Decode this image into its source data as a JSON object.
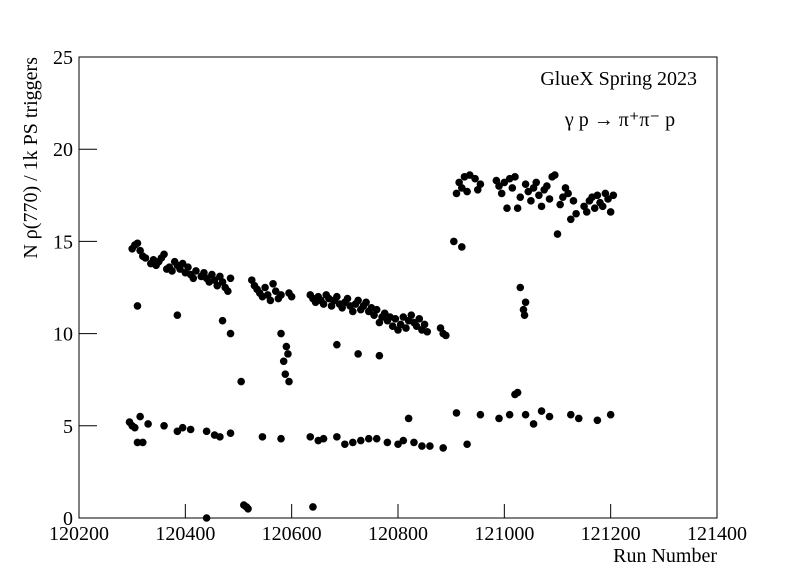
{
  "chart_data": {
    "type": "scatter",
    "y_label": "N ρ(770) / 1k PS triggers",
    "x_label": "Run Number",
    "annotations": [
      "GlueX Spring 2023",
      "γ p → π⁺π⁻ p"
    ],
    "color": "#000000",
    "xlim": [
      120200,
      121400
    ],
    "xticks": [
      120200,
      120400,
      120600,
      120800,
      121000,
      121200,
      121400
    ],
    "ylim": [
      0,
      25
    ],
    "yticks": [
      0,
      5,
      10,
      15,
      20,
      25
    ],
    "x": [
      120300,
      120305,
      120310,
      120315,
      120320,
      120325,
      120335,
      120340,
      120345,
      120350,
      120355,
      120360,
      120365,
      120370,
      120375,
      120380,
      120385,
      120390,
      120395,
      120400,
      120405,
      120410,
      120415,
      120420,
      120430,
      120435,
      120440,
      120445,
      120450,
      120455,
      120460,
      120465,
      120470,
      120475,
      120480,
      120485,
      120525,
      120530,
      120535,
      120540,
      120545,
      120550,
      120555,
      120560,
      120565,
      120570,
      120575,
      120580,
      120595,
      120600,
      120635,
      120640,
      120645,
      120650,
      120655,
      120660,
      120665,
      120670,
      120675,
      120680,
      120685,
      120690,
      120695,
      120700,
      120705,
      120710,
      120715,
      120720,
      120725,
      120730,
      120735,
      120740,
      120745,
      120750,
      120755,
      120760,
      120765,
      120770,
      120775,
      120780,
      120785,
      120790,
      120795,
      120800,
      120805,
      120810,
      120815,
      120820,
      120825,
      120830,
      120835,
      120840,
      120845,
      120850,
      120855,
      120880,
      120885,
      120890,
      120910,
      120915,
      120920,
      120925,
      120930,
      120935,
      120945,
      120950,
      120955,
      120985,
      120990,
      120995,
      121000,
      121005,
      121010,
      121015,
      121020,
      121025,
      121030,
      121040,
      121045,
      121050,
      121055,
      121060,
      121065,
      121070,
      121075,
      121080,
      121085,
      121090,
      121095,
      121100,
      121105,
      121110,
      121115,
      121120,
      121125,
      121130,
      121135,
      121150,
      121155,
      121160,
      121165,
      121170,
      121175,
      121180,
      121185,
      121190,
      121195,
      121200,
      121205,
      120310,
      120385,
      120470,
      120485,
      120505,
      120580,
      120585,
      120588,
      120590,
      120593,
      120595,
      120685,
      120725,
      120765,
      120905,
      120920,
      121030,
      121040,
      121038,
      121036,
      120295,
      120300,
      120305,
      120310,
      120315,
      120320,
      120330,
      120360,
      120385,
      120395,
      120410,
      120440,
      120455,
      120465,
      120485,
      120545,
      120580,
      120635,
      120650,
      120660,
      120685,
      120700,
      120715,
      120730,
      120745,
      120760,
      120780,
      120800,
      120810,
      120830,
      120845,
      120860,
      120885,
      120910,
      120930,
      120955,
      120990,
      121010,
      121020,
      121025,
      121040,
      121055,
      121070,
      121085,
      121125,
      121140,
      121175,
      121200,
      120820,
      120440,
      120510,
      120515,
      120518,
      120640
    ],
    "values": [
      14.6,
      14.8,
      14.9,
      14.5,
      14.2,
      14.1,
      13.8,
      14.0,
      13.7,
      13.9,
      14.1,
      14.3,
      13.5,
      13.6,
      13.4,
      13.9,
      13.7,
      13.5,
      13.8,
      13.3,
      13.6,
      13.2,
      13.0,
      13.4,
      13.1,
      13.3,
      13.0,
      12.8,
      13.2,
      12.9,
      12.6,
      13.1,
      12.8,
      12.5,
      12.3,
      13.0,
      12.9,
      12.6,
      12.4,
      12.2,
      12.0,
      12.5,
      12.1,
      11.8,
      12.7,
      12.3,
      11.9,
      12.1,
      12.2,
      12.0,
      12.1,
      11.9,
      11.7,
      12.0,
      11.8,
      11.6,
      12.1,
      11.9,
      11.5,
      11.8,
      12.0,
      11.6,
      11.4,
      11.7,
      11.9,
      11.5,
      11.2,
      11.6,
      11.8,
      11.3,
      11.5,
      11.7,
      11.2,
      11.4,
      11.0,
      11.3,
      10.6,
      10.9,
      11.1,
      10.7,
      10.9,
      10.4,
      10.8,
      10.2,
      10.5,
      10.9,
      10.3,
      10.7,
      11.0,
      10.6,
      10.4,
      10.8,
      10.2,
      10.5,
      10.1,
      10.3,
      10.0,
      9.9,
      17.6,
      18.2,
      17.9,
      18.5,
      17.7,
      18.6,
      18.4,
      17.8,
      18.1,
      18.3,
      18.0,
      17.6,
      18.2,
      16.8,
      18.4,
      17.9,
      18.5,
      16.8,
      17.4,
      18.1,
      17.7,
      17.2,
      17.9,
      18.2,
      17.5,
      16.9,
      17.8,
      18.0,
      17.3,
      18.5,
      18.6,
      15.4,
      17.0,
      17.4,
      17.9,
      17.6,
      16.2,
      17.2,
      16.5,
      16.9,
      16.6,
      17.2,
      17.4,
      16.8,
      17.5,
      17.1,
      16.9,
      17.6,
      17.3,
      16.6,
      17.5,
      11.5,
      11.0,
      10.7,
      10.0,
      7.4,
      10.0,
      8.5,
      7.8,
      9.3,
      8.9,
      7.4,
      9.4,
      8.9,
      8.8,
      15.0,
      14.7,
      12.5,
      11.7,
      11.0,
      11.3,
      5.2,
      5.0,
      4.9,
      4.1,
      5.5,
      4.1,
      5.1,
      5.0,
      4.7,
      4.9,
      4.8,
      4.7,
      4.5,
      4.4,
      4.6,
      4.4,
      4.3,
      4.4,
      4.2,
      4.3,
      4.4,
      4.0,
      4.1,
      4.2,
      4.3,
      4.3,
      4.1,
      4.0,
      4.2,
      4.1,
      3.9,
      3.9,
      3.8,
      5.7,
      4.0,
      5.6,
      5.4,
      5.6,
      6.7,
      6.8,
      5.6,
      5.1,
      5.8,
      5.5,
      5.6,
      5.4,
      5.3,
      5.6,
      5.4,
      0.0,
      0.7,
      0.6,
      0.5,
      0.6
    ]
  }
}
